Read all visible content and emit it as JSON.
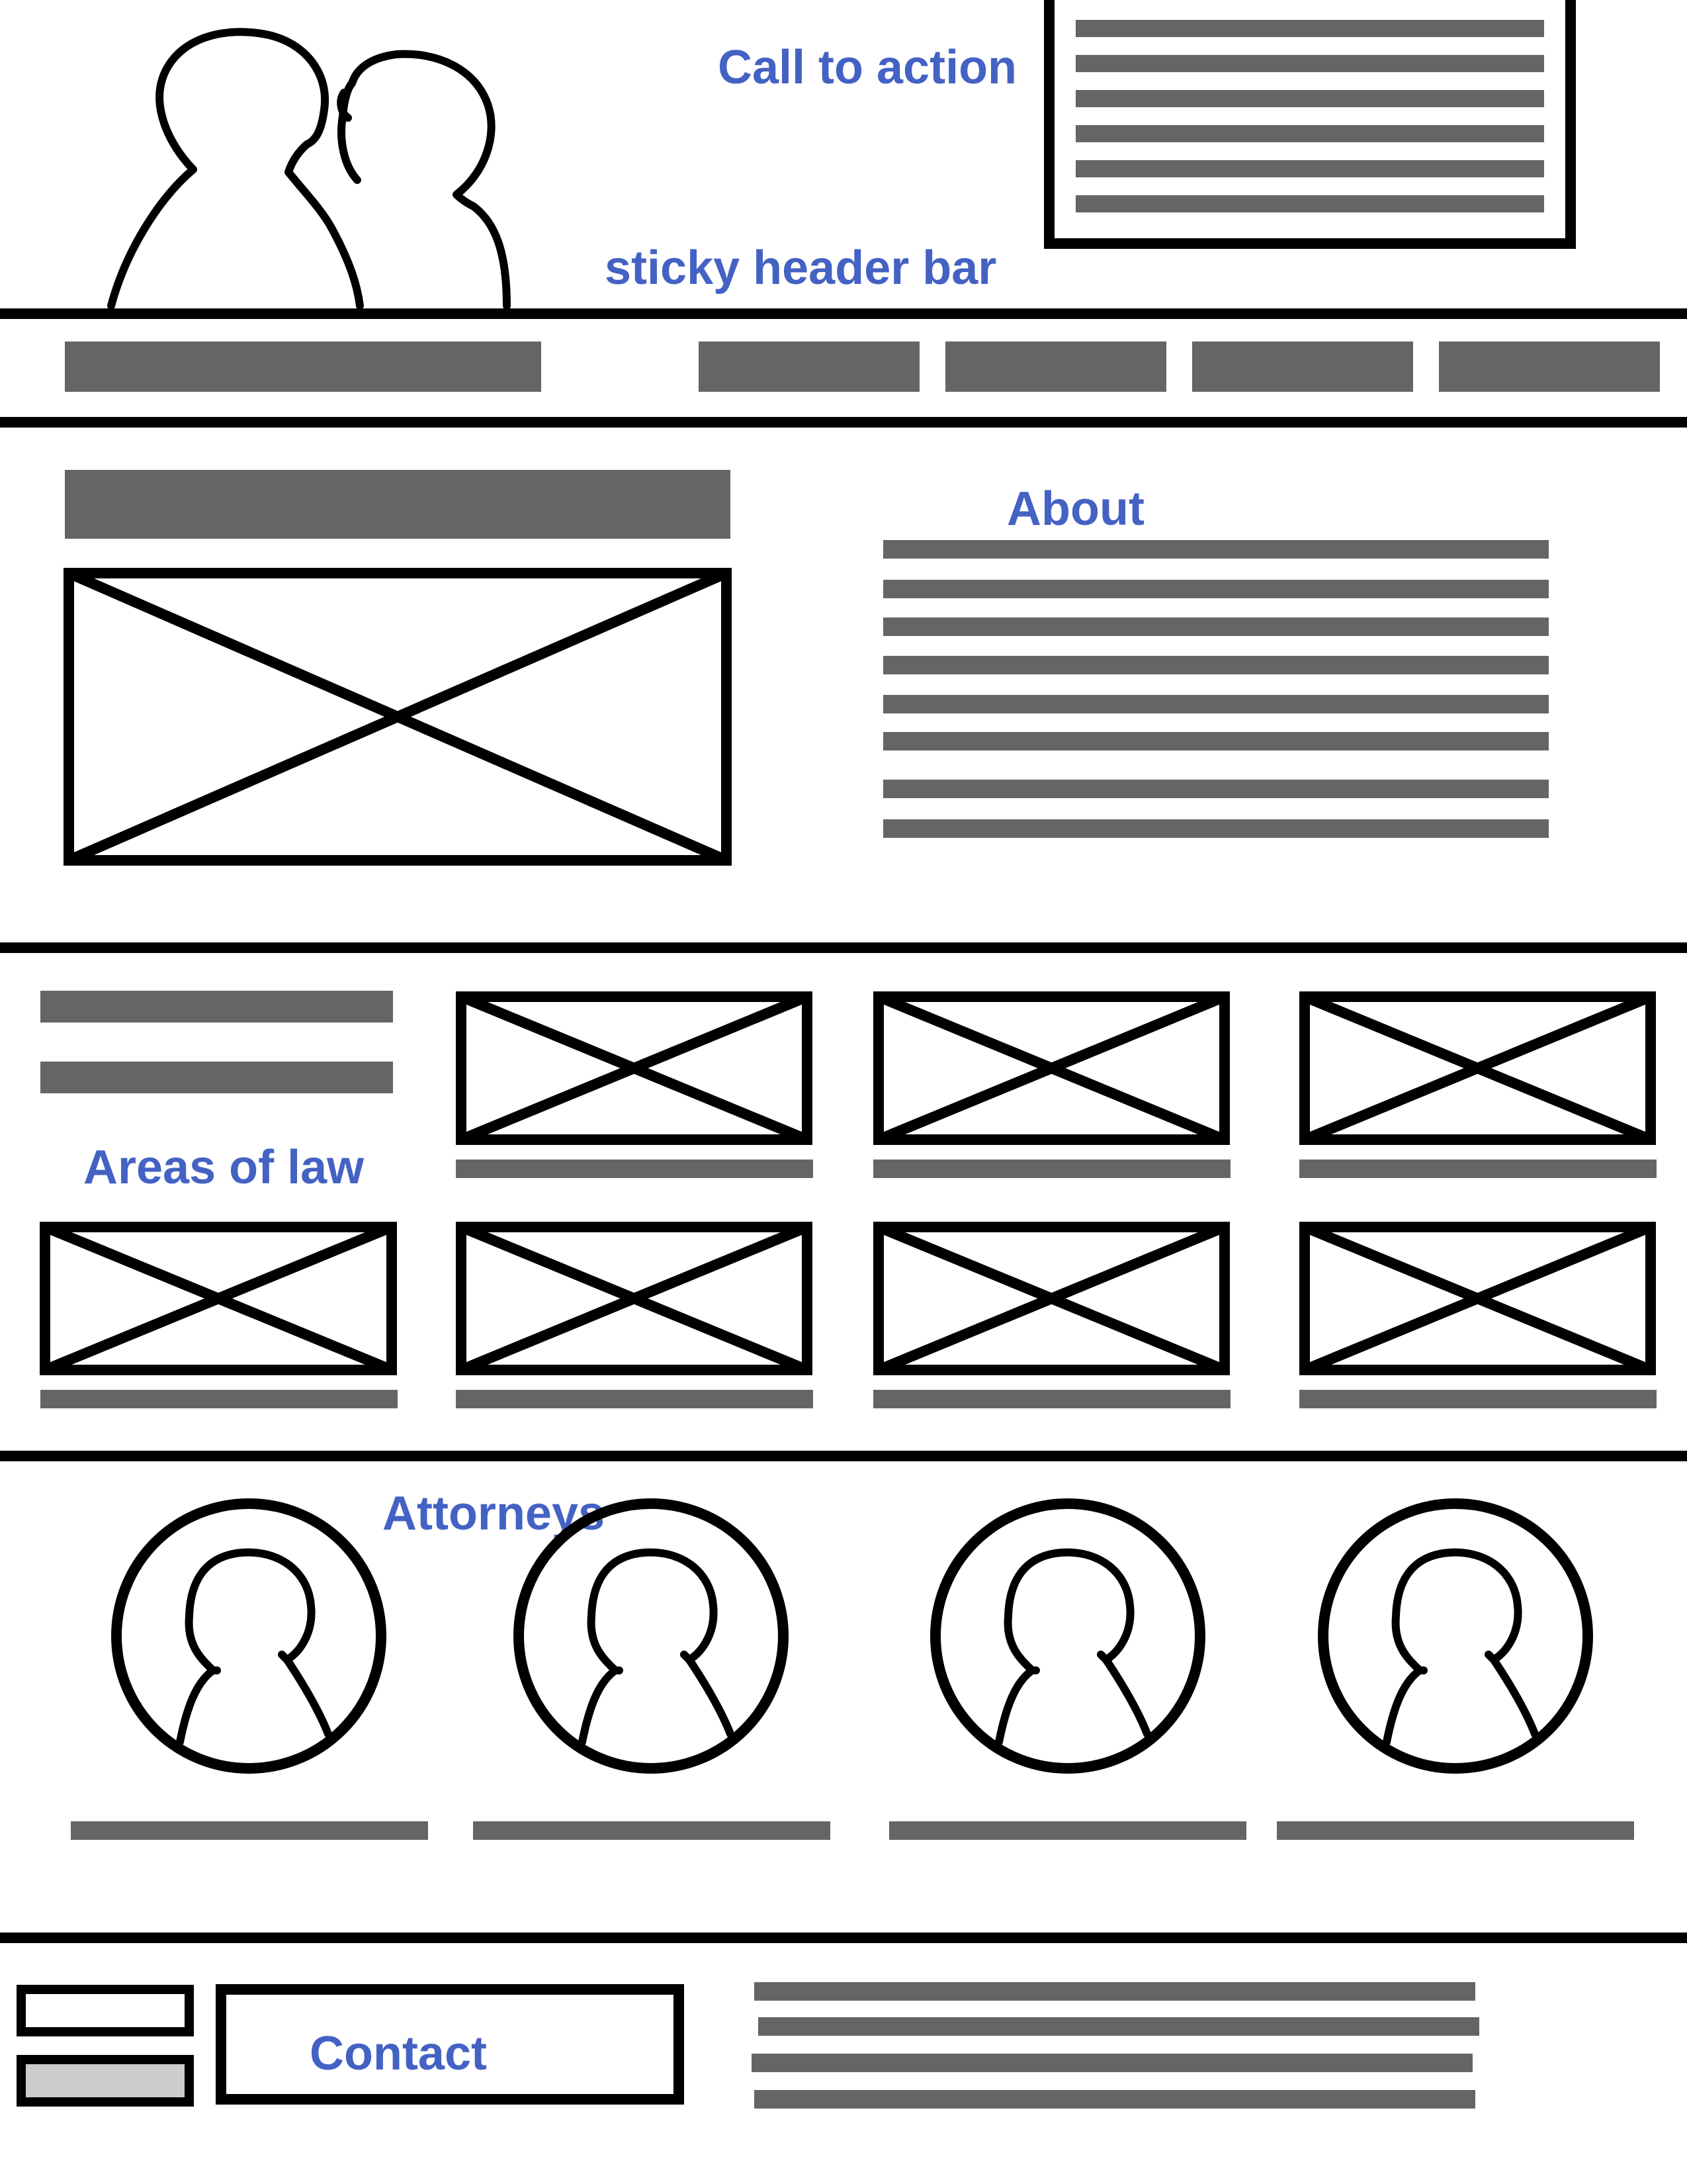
{
  "labels": {
    "call_to_action": "Call to action",
    "sticky_header": "sticky header bar",
    "about": "About",
    "areas_of_law": "Areas of law",
    "attorneys": "Attorneys",
    "contact": "Contact"
  },
  "colors": {
    "annotation": "#4462c4",
    "placeholder_bar": "#656565",
    "outline": "#000000",
    "input_fill": "#cccccc"
  },
  "icons": [
    "people-illustration",
    "image-placeholder",
    "person-avatar-icon"
  ]
}
